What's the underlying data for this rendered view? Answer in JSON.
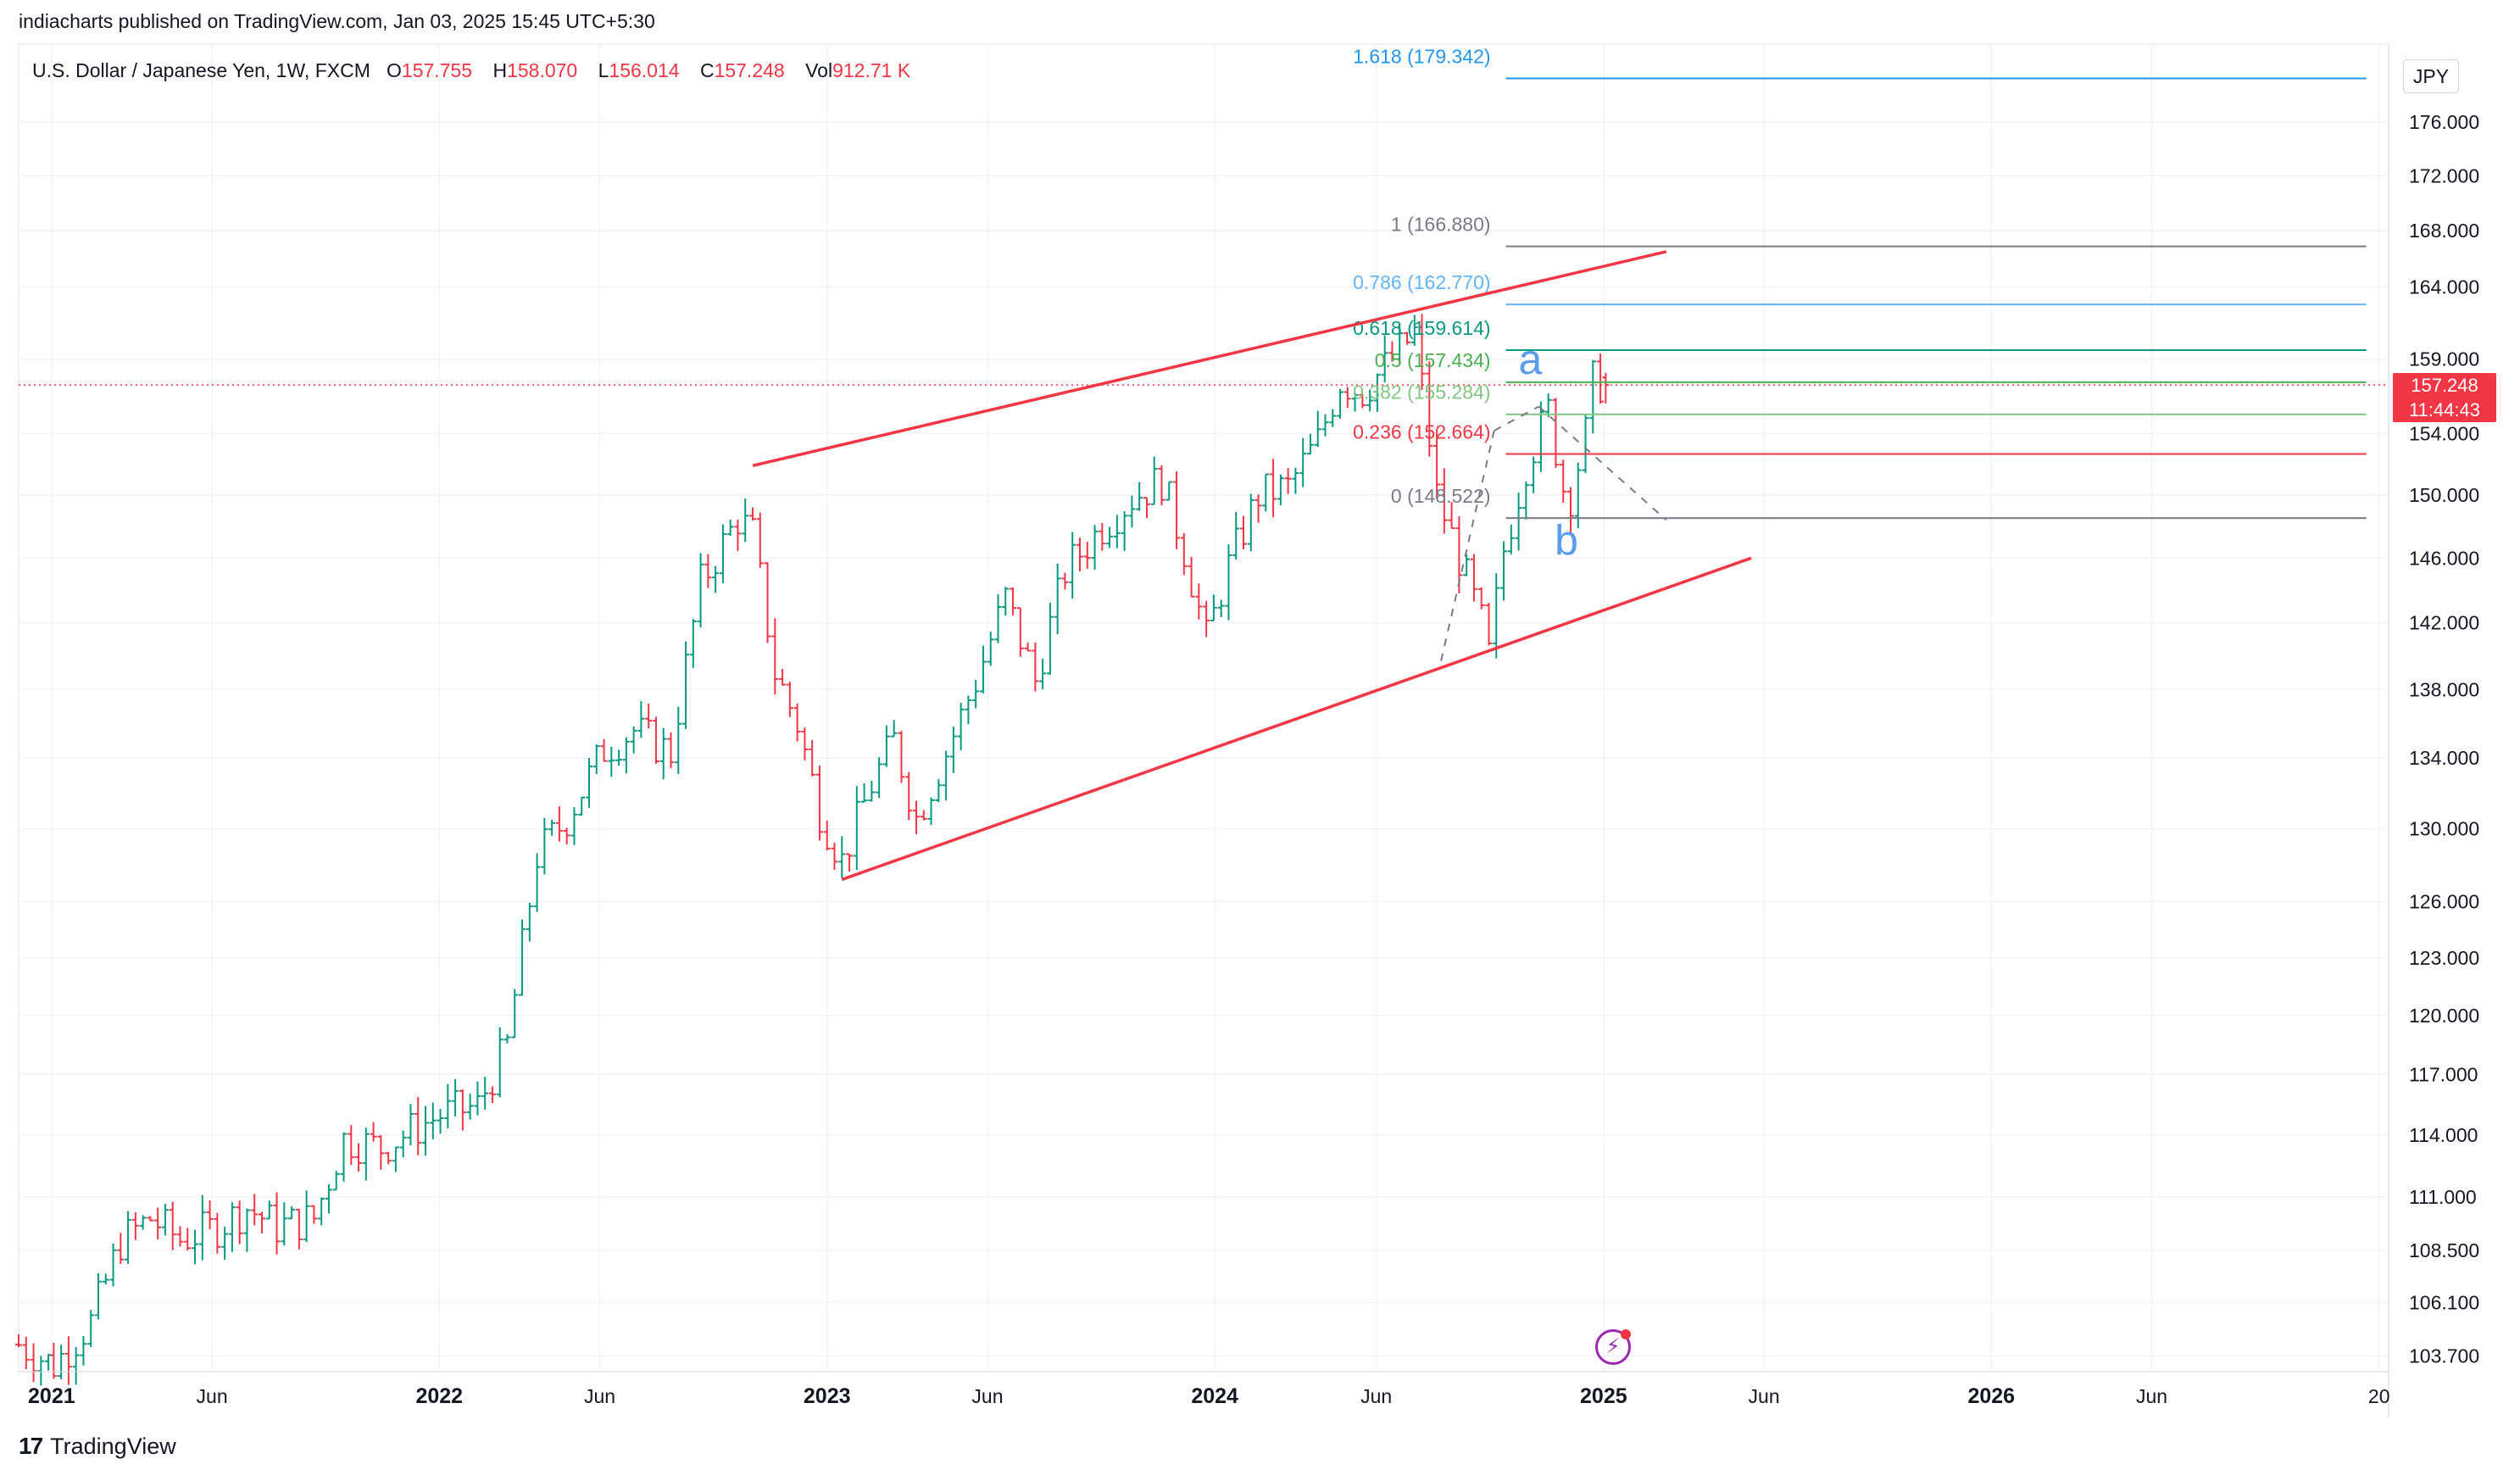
{
  "header": {
    "published_text": "indiacharts published on TradingView.com, Jan 03, 2025 15:45 UTC+5:30"
  },
  "legend": {
    "symbol": "U.S. Dollar / Japanese Yen, 1W, FXCM",
    "open_label": "O",
    "open_value": "157.755",
    "high_label": "H",
    "high_value": "158.070",
    "low_label": "L",
    "low_value": "156.014",
    "close_label": "C",
    "close_value": "157.248",
    "vol_label": "Vol",
    "vol_value": "912.71 K"
  },
  "currency_button": "JPY",
  "last_price": {
    "price": "157.248",
    "countdown": "11:44:43"
  },
  "footer": {
    "brand": "TradingView",
    "logo_glyph": "17"
  },
  "colors": {
    "up": "#089981",
    "down": "#f23645",
    "channel": "#f23645",
    "fib_1618": "#2196f3",
    "fib_1": "#787b86",
    "fib_0786": "#64b5f6",
    "fib_0618": "#089981",
    "fib_05": "#4caf50",
    "fib_0382": "#81c784",
    "fib_0236": "#f23645",
    "fib_0": "#787b86",
    "wave_label": "#5b9cf0"
  },
  "icons": {
    "flash": "lightning-icon",
    "logo": "tradingview-logo-icon"
  },
  "chart_data": {
    "type": "ohlc_bar",
    "scale": "log",
    "ylim": [
      103.0,
      182.0
    ],
    "y_ticks": [
      "176.000",
      "172.000",
      "168.000",
      "164.000",
      "159.000",
      "154.000",
      "150.000",
      "146.000",
      "142.000",
      "138.000",
      "134.000",
      "130.000",
      "126.000",
      "123.000",
      "120.000",
      "117.000",
      "114.000",
      "111.000",
      "108.500",
      "106.100",
      "103.700"
    ],
    "x_ticks": [
      {
        "label": "2021",
        "date": "2021-01-01"
      },
      {
        "label": "Jun",
        "date": "2021-06-01"
      },
      {
        "label": "2022",
        "date": "2022-01-01"
      },
      {
        "label": "Jun",
        "date": "2022-06-01"
      },
      {
        "label": "2023",
        "date": "2023-01-01"
      },
      {
        "label": "Jun",
        "date": "2023-06-01"
      },
      {
        "label": "2024",
        "date": "2024-01-01"
      },
      {
        "label": "Jun",
        "date": "2024-06-01"
      },
      {
        "label": "2025",
        "date": "2025-01-01"
      },
      {
        "label": "Jun",
        "date": "2025-06-01"
      },
      {
        "label": "2026",
        "date": "2026-01-01"
      },
      {
        "label": "Jun",
        "date": "2026-06-01"
      },
      {
        "label": "20",
        "date": "2027-01-01"
      }
    ],
    "xlim": [
      "2020-12-01",
      "2027-01-10"
    ],
    "close_series": [
      [
        "2020-12-01",
        104.2
      ],
      [
        "2021-01-03",
        103.3
      ],
      [
        "2021-02-07",
        105.2
      ],
      [
        "2021-03-07",
        108.9
      ],
      [
        "2021-04-04",
        110.0
      ],
      [
        "2021-05-02",
        109.0
      ],
      [
        "2021-06-06",
        109.6
      ],
      [
        "2021-07-04",
        110.5
      ],
      [
        "2021-08-01",
        109.6
      ],
      [
        "2021-09-05",
        110.0
      ],
      [
        "2021-10-03",
        113.8
      ],
      [
        "2021-11-07",
        113.4
      ],
      [
        "2021-12-05",
        114.2
      ],
      [
        "2022-01-02",
        115.0
      ],
      [
        "2022-02-06",
        115.4
      ],
      [
        "2022-03-06",
        118.5
      ],
      [
        "2022-04-03",
        128.5
      ],
      [
        "2022-05-01",
        130.6
      ],
      [
        "2022-06-05",
        134.5
      ],
      [
        "2022-07-03",
        135.6
      ],
      [
        "2022-08-07",
        134.3
      ],
      [
        "2022-09-04",
        144.4
      ],
      [
        "2022-10-09",
        148.5
      ],
      [
        "2022-10-23",
        147.5
      ],
      [
        "2022-11-13",
        139.0
      ],
      [
        "2022-12-04",
        136.0
      ],
      [
        "2022-12-25",
        131.0
      ],
      [
        "2023-01-15",
        128.2
      ],
      [
        "2023-02-12",
        132.5
      ],
      [
        "2023-03-05",
        135.0
      ],
      [
        "2023-03-26",
        130.6
      ],
      [
        "2023-04-23",
        134.3
      ],
      [
        "2023-05-21",
        138.5
      ],
      [
        "2023-06-18",
        143.5
      ],
      [
        "2023-07-16",
        138.5
      ],
      [
        "2023-08-13",
        145.2
      ],
      [
        "2023-09-17",
        148.0
      ],
      [
        "2023-10-15",
        149.8
      ],
      [
        "2023-11-12",
        151.0
      ],
      [
        "2023-12-03",
        146.5
      ],
      [
        "2023-12-24",
        141.0
      ],
      [
        "2024-01-14",
        145.5
      ],
      [
        "2024-02-11",
        150.0
      ],
      [
        "2024-03-10",
        150.5
      ],
      [
        "2024-04-07",
        153.5
      ],
      [
        "2024-04-28",
        157.5
      ],
      [
        "2024-05-19",
        156.8
      ],
      [
        "2024-06-16",
        159.0
      ],
      [
        "2024-07-07",
        160.8
      ],
      [
        "2024-07-28",
        150.0
      ],
      [
        "2024-08-18",
        146.0
      ],
      [
        "2024-09-08",
        142.0
      ],
      [
        "2024-09-15",
        140.0
      ],
      [
        "2024-09-29",
        146.5
      ],
      [
        "2024-10-20",
        152.0
      ],
      [
        "2024-11-10",
        155.5
      ],
      [
        "2024-11-24",
        150.5
      ],
      [
        "2024-12-01",
        150.0
      ],
      [
        "2024-12-15",
        154.0
      ],
      [
        "2024-12-22",
        157.5
      ],
      [
        "2025-01-03",
        157.248
      ]
    ],
    "channel_lines": [
      {
        "name": "upper",
        "from": [
          "2022-10-23",
          151.9
        ],
        "to": [
          "2025-03-01",
          166.5
        ]
      },
      {
        "name": "lower",
        "from": [
          "2023-01-15",
          127.2
        ],
        "to": [
          "2025-05-20",
          146.0
        ]
      }
    ],
    "wave_lines": [
      {
        "from": [
          "2024-08-01",
          139.7
        ],
        "to": [
          "2024-09-20",
          154.2
        ],
        "style": "dashed"
      },
      {
        "from": [
          "2024-09-20",
          154.2
        ],
        "to": [
          "2024-11-01",
          155.8
        ],
        "style": "dashed"
      },
      {
        "from": [
          "2024-11-01",
          155.8
        ],
        "to": [
          "2025-03-01",
          148.4
        ],
        "style": "dashed"
      }
    ],
    "wave_labels": [
      {
        "text": "a",
        "date": "2024-10-24",
        "price": 158.0
      },
      {
        "text": "b",
        "date": "2024-11-27",
        "price": 146.2
      }
    ],
    "fib_levels": [
      {
        "ratio": "1.618",
        "price": 179.342,
        "label": "1.618 (179.342)",
        "color_key": "fib_1618"
      },
      {
        "ratio": "1",
        "price": 166.88,
        "label": "1 (166.880)",
        "color_key": "fib_1"
      },
      {
        "ratio": "0.786",
        "price": 162.77,
        "label": "0.786 (162.770)",
        "color_key": "fib_0786"
      },
      {
        "ratio": "0.618",
        "price": 159.614,
        "label": "0.618 (159.614)",
        "color_key": "fib_0618"
      },
      {
        "ratio": "0.5",
        "price": 157.434,
        "label": "0.5 (157.434)",
        "color_key": "fib_05"
      },
      {
        "ratio": "0.382",
        "price": 155.284,
        "label": "0.382 (155.284)",
        "color_key": "fib_0382"
      },
      {
        "ratio": "0.236",
        "price": 152.664,
        "label": "0.236 (152.664)",
        "color_key": "fib_0236"
      },
      {
        "ratio": "0",
        "price": 148.522,
        "label": "0 (148.522)",
        "color_key": "fib_0"
      }
    ],
    "fib_range": [
      "2024-10-01",
      "2026-12-20"
    ],
    "last_price": 157.248
  }
}
